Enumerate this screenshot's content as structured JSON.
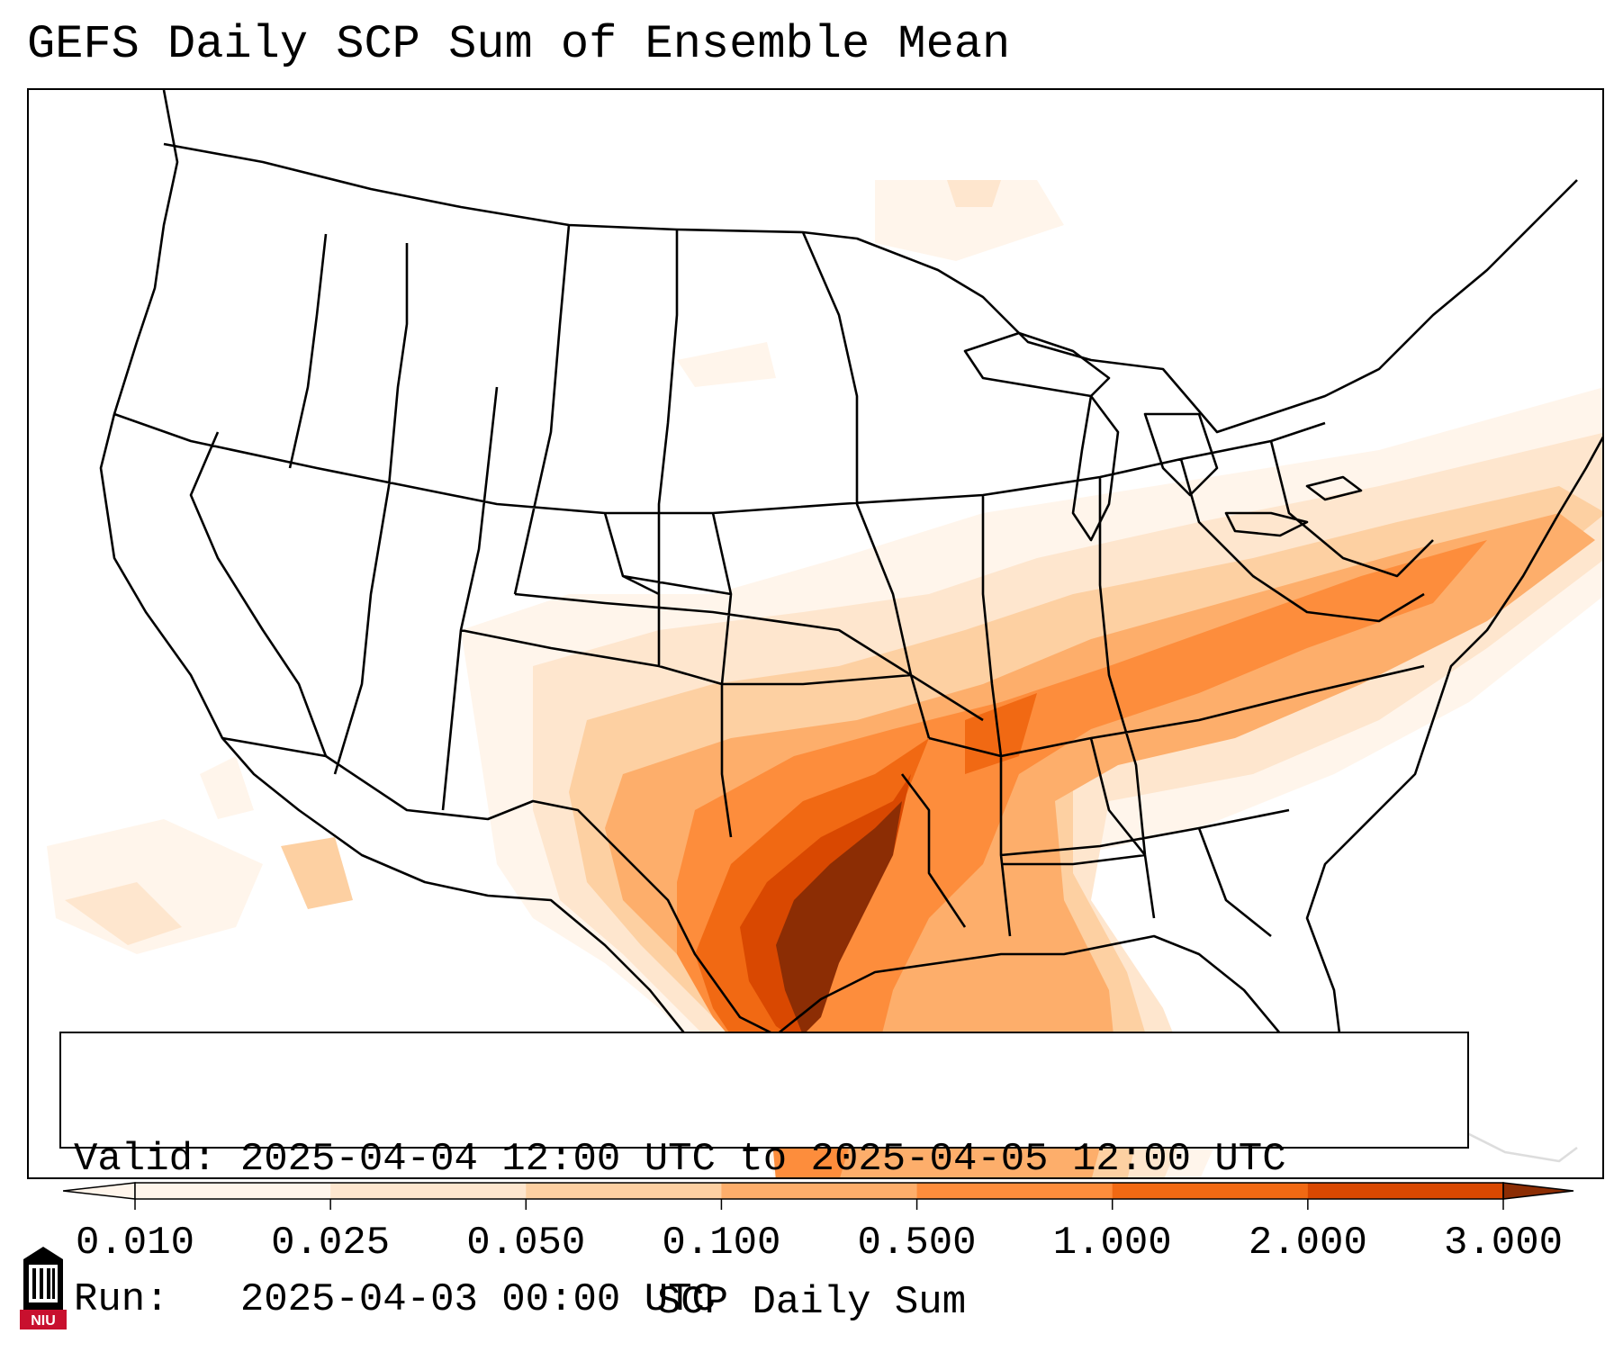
{
  "title": "GEFS Daily SCP Sum of Ensemble Mean",
  "info": {
    "valid_line": "Valid: 2025-04-04 12:00 UTC to 2025-04-05 12:00 UTC",
    "run_line": "Run:   2025-04-03 00:00 UTC"
  },
  "colorbar": {
    "label": "SCP Daily Sum",
    "extend": "both",
    "ticks": [
      "0.010",
      "0.025",
      "0.050",
      "0.100",
      "0.500",
      "1.000",
      "2.000",
      "3.000"
    ],
    "colors": [
      "#fff5eb",
      "#fee6ce",
      "#fdd0a2",
      "#fdae6b",
      "#fd8d3c",
      "#f16913",
      "#d94801",
      "#8c2d04"
    ]
  },
  "map": {
    "region": "Contiguous United States",
    "overlays": [
      "state-borders",
      "coastlines",
      "country-borders"
    ]
  },
  "logo": {
    "text": "NIU",
    "icon": "university-building-icon",
    "colors": {
      "primary": "#c8102e",
      "secondary": "#000000"
    }
  }
}
